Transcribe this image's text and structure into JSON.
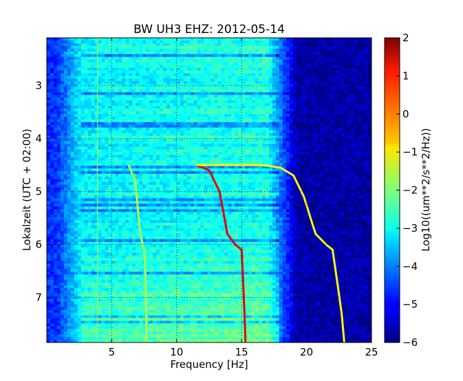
{
  "chart_data": {
    "type": "heatmap",
    "title": "BW UH3 EHZ: 2012-05-14",
    "xlabel": "Frequency [Hz]",
    "ylabel": "Lokalzeit (UTC + 02:00)",
    "xlim": [
      0,
      25
    ],
    "ylim": [
      7.85,
      2.1
    ],
    "xticks": [
      5,
      10,
      15,
      20,
      25
    ],
    "xtick_labels": [
      "5",
      "10",
      "15",
      "20",
      "25"
    ],
    "yticks": [
      3,
      4,
      5,
      6,
      7
    ],
    "ytick_labels": [
      "3",
      "4",
      "5",
      "6",
      "7"
    ],
    "grid": true,
    "colorbar": {
      "label": "Log10((um**2/s**2/Hz))",
      "range": [
        -6,
        2
      ],
      "ticks": [
        2,
        1,
        0,
        -1,
        -2,
        -3,
        -4,
        -5,
        -6
      ],
      "tick_labels": [
        "2",
        "1",
        "0",
        "−1",
        "−2",
        "−3",
        "−4",
        "−5",
        "−6"
      ],
      "colormap": "jet"
    },
    "features": [
      {
        "kind": "chirp",
        "level": 1.2,
        "points": [
          [
            11.5,
            4.5
          ],
          [
            12.5,
            4.6
          ],
          [
            13.3,
            5.0
          ],
          [
            13.6,
            5.4
          ],
          [
            13.9,
            5.8
          ],
          [
            14.5,
            6.0
          ],
          [
            15.0,
            6.1
          ],
          [
            15.1,
            6.6
          ],
          [
            15.2,
            7.2
          ],
          [
            15.3,
            7.85
          ]
        ]
      },
      {
        "kind": "chirp",
        "level": -1.0,
        "points": [
          [
            11.5,
            4.5
          ],
          [
            16.5,
            4.5
          ],
          [
            18.0,
            4.55
          ],
          [
            19.0,
            4.7
          ],
          [
            19.8,
            5.1
          ],
          [
            20.3,
            5.5
          ],
          [
            20.7,
            5.8
          ],
          [
            21.5,
            6.0
          ],
          [
            22.0,
            6.1
          ],
          [
            22.3,
            6.6
          ],
          [
            22.7,
            7.3
          ],
          [
            22.9,
            7.85
          ]
        ]
      },
      {
        "kind": "chirp",
        "level": -1.6,
        "points": [
          [
            6.3,
            4.5
          ],
          [
            6.8,
            4.8
          ],
          [
            7.0,
            5.3
          ],
          [
            7.2,
            5.8
          ],
          [
            7.5,
            6.1
          ],
          [
            7.6,
            6.6
          ],
          [
            7.7,
            7.85
          ]
        ]
      },
      {
        "kind": "line",
        "level": -1.8,
        "points": [
          [
            3.9,
            2.1
          ],
          [
            3.9,
            7.85
          ]
        ]
      }
    ]
  }
}
